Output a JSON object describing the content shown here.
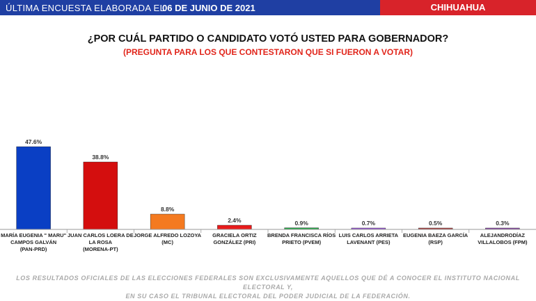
{
  "header": {
    "poll_label": "ÚLTIMA ENCUESTA ELABORADA EL",
    "poll_date": "06 DE JUNIO DE 2021",
    "state": "CHIHUAHUA"
  },
  "question": "¿POR CUÁL PARTIDO O CANDIDATO VOTÓ USTED PARA GOBERNADOR?",
  "question_note": "(PREGUNTA PARA LOS QUE CONTESTARON QUE SI FUERON A VOTAR)",
  "chart_data": {
    "type": "bar",
    "ylim": [
      0,
      50
    ],
    "grid": false,
    "categories": [
      [
        "MARÍA EUGENIA \" MARU\"",
        "CAMPOS GALVÁN",
        "(PAN-PRD)"
      ],
      [
        "JUAN CARLOS LOERA DE",
        "LA ROSA",
        "(MORENA-PT)"
      ],
      [
        "JORGE ALFREDO LOZOYA",
        "(MC)"
      ],
      [
        "GRACIELA ORTIZ",
        "GONZÁLEZ (PRI)"
      ],
      [
        "BRENDA FRANCISCA RÍOS",
        "PRIETO (PVEM)"
      ],
      [
        "LUIS CARLOS ARRIETA",
        "LAVENANT (PES)"
      ],
      [
        "EUGENIA BAEZA GARCÍA",
        "(RSP)"
      ],
      [
        "ALEJANDRODÍAZ",
        "VILLALOBOS (FPM)"
      ]
    ],
    "values": [
      47.6,
      38.8,
      8.8,
      2.4,
      0.9,
      0.7,
      0.5,
      0.3
    ],
    "data_labels": [
      "47.6%",
      "38.8%",
      "8.8%",
      "2.4%",
      "0.9%",
      "0.7%",
      "0.5%",
      "0.3%"
    ],
    "colors": [
      "#0a3fc4",
      "#d40e0e",
      "#f47a20",
      "#e81c1c",
      "#26a346",
      "#9b5bd6",
      "#b04a4a",
      "#8e4fa8"
    ]
  },
  "footnote": {
    "line1": "LOS RESULTADOS OFICIALES DE LAS ELECCIONES FEDERALES SON EXCLUSIVAMENTE AQUELLOS QUE DÉ A CONOCER EL INSTITUTO NACIONAL ELECTORAL Y,",
    "line2": "EN SU CASO EL TRIBUNAL ELECTORAL DEL PODER JUDICIAL DE LA FEDERACIÓN."
  }
}
